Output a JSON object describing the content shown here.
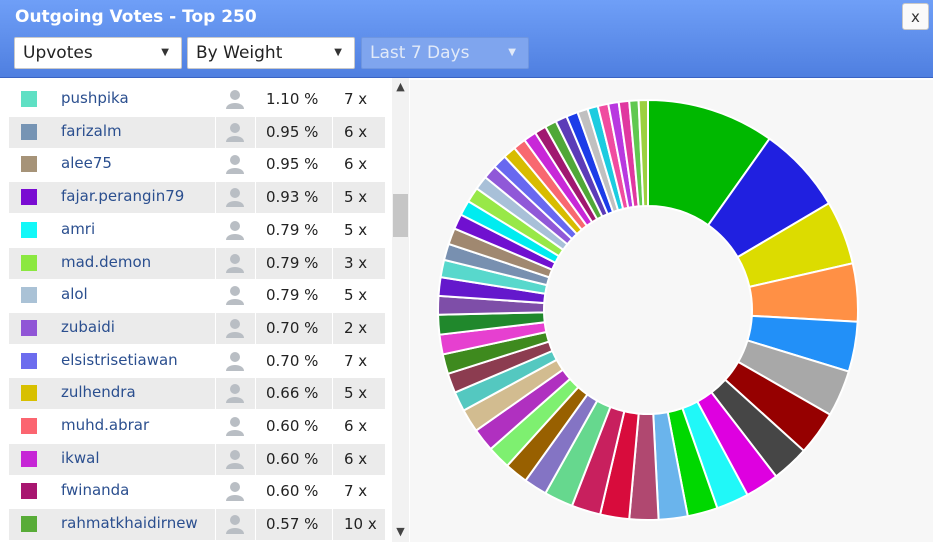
{
  "header": {
    "title": "Outgoing Votes - Top 250",
    "close_label": "x",
    "vote_type": "Upvotes",
    "sort_mode": "By Weight",
    "period": "Last 7 Days"
  },
  "colors": {
    "header_top": "#6f9ff7",
    "header_bottom": "#4f7fe0",
    "link": "#2b4f8f"
  },
  "rows": [
    {
      "color": "#5fe0c4",
      "name": "pushpika",
      "pct": "1.10 %",
      "count": "7 x"
    },
    {
      "color": "#7694b4",
      "name": "farizalm",
      "pct": "0.95 %",
      "count": "6 x"
    },
    {
      "color": "#a69378",
      "name": "alee75",
      "pct": "0.95 %",
      "count": "6 x"
    },
    {
      "color": "#7a0cd2",
      "name": "fajar.perangin79",
      "pct": "0.93 %",
      "count": "5 x"
    },
    {
      "color": "#12f8f8",
      "name": "amri",
      "pct": "0.79 %",
      "count": "5 x"
    },
    {
      "color": "#8be840",
      "name": "mad.demon",
      "pct": "0.79 %",
      "count": "3 x"
    },
    {
      "color": "#aac2d6",
      "name": "alol",
      "pct": "0.79 %",
      "count": "5 x"
    },
    {
      "color": "#9055d6",
      "name": "zubaidi",
      "pct": "0.70 %",
      "count": "2 x"
    },
    {
      "color": "#6c6cee",
      "name": "elsistrisetiawan",
      "pct": "0.70 %",
      "count": "7 x"
    },
    {
      "color": "#d8c000",
      "name": "zulhendra",
      "pct": "0.66 %",
      "count": "5 x"
    },
    {
      "color": "#fb6570",
      "name": "muhd.abrar",
      "pct": "0.60 %",
      "count": "6 x"
    },
    {
      "color": "#c626d6",
      "name": "ikwal",
      "pct": "0.60 %",
      "count": "6 x"
    },
    {
      "color": "#a81670",
      "name": "fwinanda",
      "pct": "0.60 %",
      "count": "7 x"
    },
    {
      "color": "#58ac38",
      "name": "rahmatkhaidirnew",
      "pct": "0.57 %",
      "count": "10 x"
    }
  ],
  "chart_data": {
    "type": "pie",
    "variant": "donut",
    "slices": [
      {
        "value": 11.0,
        "color": "#00b800"
      },
      {
        "value": 7.5,
        "color": "#2020e0"
      },
      {
        "value": 5.5,
        "color": "#dcdc00"
      },
      {
        "value": 5.0,
        "color": "#ff9045"
      },
      {
        "value": 4.3,
        "color": "#2290f8"
      },
      {
        "value": 4.0,
        "color": "#a8a8a8"
      },
      {
        "value": 3.8,
        "color": "#960000"
      },
      {
        "value": 3.2,
        "color": "#464646"
      },
      {
        "value": 2.9,
        "color": "#de00e0"
      },
      {
        "value": 2.8,
        "color": "#20f8f8"
      },
      {
        "value": 2.6,
        "color": "#00d800"
      },
      {
        "value": 2.5,
        "color": "#6ab4ec"
      },
      {
        "value": 2.5,
        "color": "#b04870"
      },
      {
        "value": 2.5,
        "color": "#d80c3c"
      },
      {
        "value": 2.5,
        "color": "#c8205e"
      },
      {
        "value": 2.5,
        "color": "#66d88e"
      },
      {
        "value": 2.0,
        "color": "#8474c4"
      },
      {
        "value": 2.0,
        "color": "#986000"
      },
      {
        "value": 2.0,
        "color": "#7ef070"
      },
      {
        "value": 2.0,
        "color": "#b030c0"
      },
      {
        "value": 2.0,
        "color": "#d2bc90"
      },
      {
        "value": 1.7,
        "color": "#54c8c0"
      },
      {
        "value": 1.7,
        "color": "#8c3c50"
      },
      {
        "value": 1.7,
        "color": "#3e8a1e"
      },
      {
        "value": 1.7,
        "color": "#e640d0"
      },
      {
        "value": 1.7,
        "color": "#20882c"
      },
      {
        "value": 1.6,
        "color": "#7e4ea8"
      },
      {
        "value": 1.6,
        "color": "#6418cc"
      },
      {
        "value": 1.5,
        "color": "#58d8cc"
      },
      {
        "value": 1.4,
        "color": "#7890b0"
      },
      {
        "value": 1.4,
        "color": "#a08870"
      },
      {
        "value": 1.3,
        "color": "#7010d0"
      },
      {
        "value": 1.3,
        "color": "#00ecf0"
      },
      {
        "value": 1.3,
        "color": "#98e848"
      },
      {
        "value": 1.2,
        "color": "#a8c0d8"
      },
      {
        "value": 1.2,
        "color": "#9058d8"
      },
      {
        "value": 1.2,
        "color": "#6868f0"
      },
      {
        "value": 1.1,
        "color": "#d8bc00"
      },
      {
        "value": 1.1,
        "color": "#f86870"
      },
      {
        "value": 1.1,
        "color": "#c828d8"
      },
      {
        "value": 1.0,
        "color": "#a01870"
      },
      {
        "value": 1.0,
        "color": "#50a838"
      },
      {
        "value": 1.0,
        "color": "#5c3cb8"
      },
      {
        "value": 1.0,
        "color": "#1c3ce8"
      },
      {
        "value": 0.9,
        "color": "#c0c0c0"
      },
      {
        "value": 0.9,
        "color": "#1ccce0"
      },
      {
        "value": 0.9,
        "color": "#f04ca0"
      },
      {
        "value": 0.9,
        "color": "#b838e0"
      },
      {
        "value": 0.9,
        "color": "#e038a0"
      },
      {
        "value": 0.8,
        "color": "#60c850"
      },
      {
        "value": 0.8,
        "color": "#9cd040"
      }
    ]
  }
}
